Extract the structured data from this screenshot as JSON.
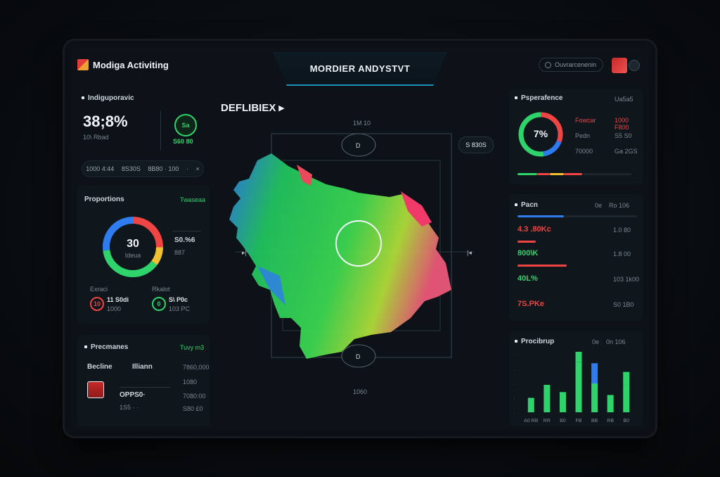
{
  "app": {
    "brand": "Modiga Activiting",
    "window_title": "MORDIER ANDYSTVT"
  },
  "header": {
    "search_text": "Ouvrarcenenin"
  },
  "left": {
    "stat": {
      "heading": "Indiguporavic",
      "value": "38;8%",
      "sub": "10\\ Rbad",
      "icon_text": "Sa",
      "side_value": "S60 80"
    },
    "pill": {
      "items": [
        "1000 4:44",
        "8S30S",
        "8B80 · 100",
        "·",
        "×"
      ]
    },
    "proportions": {
      "heading": "Proportions",
      "link": "Twaseaa",
      "donut_value": "30",
      "donut_sub": "Ideua",
      "side_value": "S0.%6",
      "side_sub": "887",
      "left_badge": {
        "label": "Exraci",
        "icon": "10",
        "value": "11 S0di",
        "sub": "1000"
      },
      "right_badge": {
        "label": "Rkalot",
        "icon": "0",
        "value": "S\\ P0c",
        "sub": "103 PC"
      }
    },
    "footer_card": {
      "heading": "Precmanes",
      "link": "Tuvy m3",
      "col1": "Becline",
      "col2": "Illiann",
      "col3": "7860,000",
      "row_label": "OPPS0·",
      "row_sub": "1S5 · ·",
      "val1": "1080",
      "val2": "7080:00",
      "val3": "S80 £0"
    }
  },
  "center": {
    "heading": "DEFLIBIEX ▸",
    "top_label": "1M 10",
    "bottom_label": "1060",
    "marker_label": "S 830S"
  },
  "right": {
    "performance": {
      "heading": "Psperafence",
      "link": "Ua5a5",
      "donut_value": "7%",
      "rows": [
        {
          "label": "Fowcar",
          "value": "1000 F800"
        },
        {
          "label": "Pedn",
          "value": "S5 S0"
        },
        {
          "label": "70000",
          "value": "Ga 2GS"
        }
      ]
    },
    "pacn": {
      "heading": "Pacn",
      "tabs": [
        "0e",
        "Ro 106"
      ],
      "rows": [
        {
          "label": "4.3 .80Kc",
          "value": "1.0 80",
          "color": "#ef4444"
        },
        {
          "label": "800\\K",
          "value": "1.8 00",
          "color": "#2fd36b"
        },
        {
          "label": "40L%",
          "value": "103 1k00",
          "color": "#2fd36b"
        },
        {
          "label": "7S.PKe",
          "value": "S0 1B0",
          "color": "#ef4444"
        }
      ]
    },
    "bars": {
      "heading": "Procibrup",
      "tabs": [
        "0e",
        "0n 106"
      ],
      "categories": [
        "A0 RB",
        "RR",
        "B0",
        "FB",
        "BB",
        "RB",
        "B0"
      ]
    }
  },
  "chart_data": {
    "type": "bar",
    "categories": [
      "A0 RB",
      "RR",
      "B0",
      "FB",
      "BB",
      "RB",
      "B0"
    ],
    "series": [
      {
        "values": [
          20,
          38,
          28,
          70,
          40,
          24,
          38
        ]
      },
      {
        "values": [
          0,
          0,
          0,
          0,
          28,
          0,
          0
        ]
      },
      {
        "values": [
          0,
          0,
          0,
          20,
          0,
          0,
          18
        ]
      }
    ],
    "ylim": [
      0,
      80
    ]
  },
  "colors": {
    "green": "#2fd36b",
    "red": "#ef4444",
    "blue": "#2f7bf0",
    "yellow": "#f0c030",
    "accent": "#1e8fb8"
  }
}
